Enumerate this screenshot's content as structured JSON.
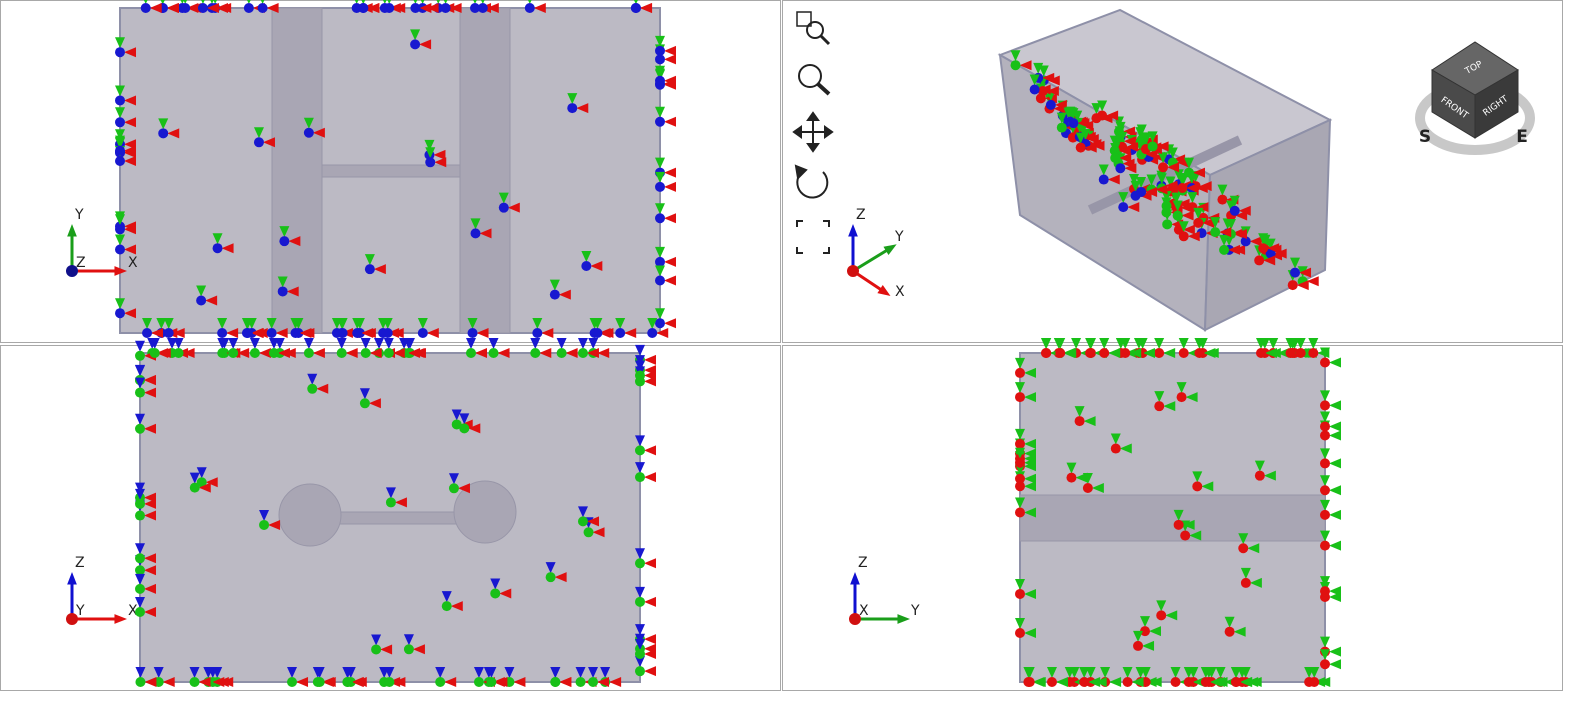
{
  "viewports": [
    {
      "axes": {
        "up": "Y",
        "right": "X",
        "origin": "Z"
      }
    },
    {
      "axes": {
        "up": "Z",
        "diagonal": "Y",
        "down": "X"
      }
    },
    {
      "axes": {
        "up": "Z",
        "right": "X",
        "origin": "Y"
      }
    },
    {
      "axes": {
        "up": "Z",
        "right": "Y",
        "origin": "X"
      }
    }
  ],
  "view_cube": {
    "top": "TOP",
    "front": "FRONT",
    "right": "RIGHT",
    "south": "S",
    "east": "E"
  }
}
